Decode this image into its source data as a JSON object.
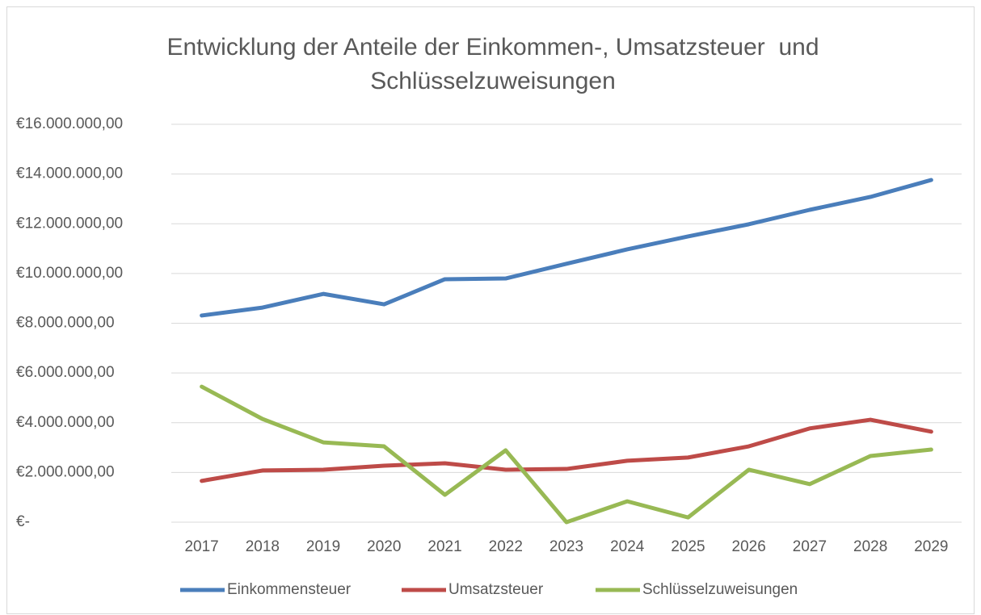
{
  "chart_data": {
    "type": "line",
    "title": "Entwicklung der Anteile der Einkommen-, Umsatzsteuer  und Schlüsselzuweisungen",
    "categories": [
      "2017",
      "2018",
      "2019",
      "2020",
      "2021",
      "2022",
      "2023",
      "2024",
      "2025",
      "2026",
      "2027",
      "2028",
      "2029"
    ],
    "series": [
      {
        "name": "Einkommensteuer",
        "color": "#4a7ebb",
        "values": [
          8310000,
          8630000,
          9180000,
          8760000,
          9770000,
          9800000,
          10390000,
          10970000,
          11490000,
          11980000,
          12560000,
          13080000,
          13760000
        ]
      },
      {
        "name": "Umsatzsteuer",
        "color": "#be4b48",
        "values": [
          1660000,
          2080000,
          2110000,
          2270000,
          2370000,
          2110000,
          2140000,
          2470000,
          2600000,
          3050000,
          3770000,
          4120000,
          3640000
        ]
      },
      {
        "name": "Schlüsselzuweisungen",
        "color": "#98b954",
        "values": [
          5450000,
          4150000,
          3210000,
          3050000,
          1100000,
          2890000,
          0,
          840000,
          190000,
          2110000,
          1530000,
          2660000,
          2920000
        ]
      }
    ],
    "ylim": [
      0,
      16000000
    ],
    "yticks": [
      {
        "value": 0,
        "label": "€-"
      },
      {
        "value": 2000000,
        "label": "€2.000.000,00"
      },
      {
        "value": 4000000,
        "label": "€4.000.000,00"
      },
      {
        "value": 6000000,
        "label": "€6.000.000,00"
      },
      {
        "value": 8000000,
        "label": "€8.000.000,00"
      },
      {
        "value": 10000000,
        "label": "€10.000.000,00"
      },
      {
        "value": 12000000,
        "label": "€12.000.000,00"
      },
      {
        "value": 14000000,
        "label": "€14.000.000,00"
      },
      {
        "value": 16000000,
        "label": "€16.000.000,00"
      }
    ],
    "grid": true,
    "legend": "bottom"
  }
}
